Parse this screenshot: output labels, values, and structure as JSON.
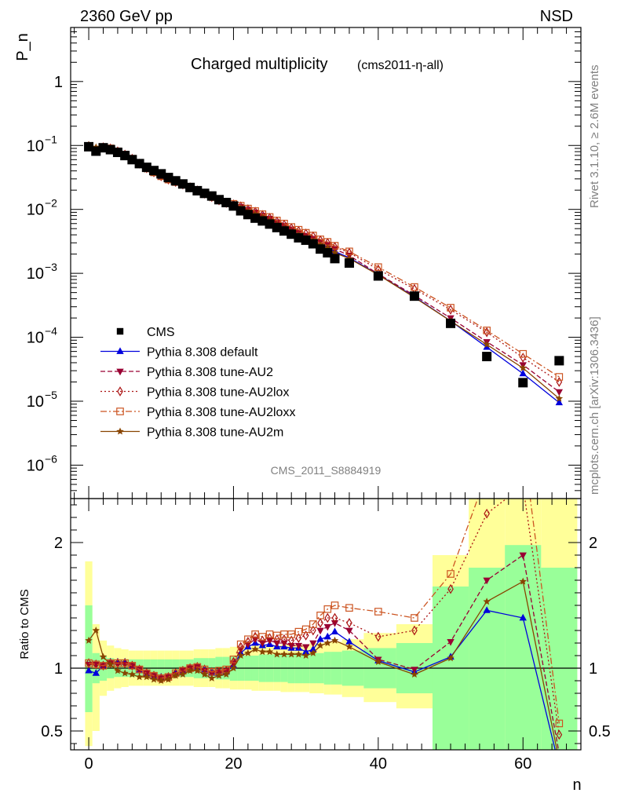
{
  "header": {
    "energy": "2360 GeV pp",
    "process": "NSD",
    "title_main": "Charged multiplicity",
    "title_sub": "(cms2011-η-all)",
    "watermark": "CMS_2011_S8884919",
    "side_rivet": "Rivet 3.1.10, ≥ 2.6M events",
    "side_site": "mcplots.cern.ch [arXiv:1306.3436]"
  },
  "colors": {
    "data": "#000000",
    "default": "#0000dd",
    "au2": "#990033",
    "au2lox": "#aa1111",
    "au2loxx": "#cc5522",
    "au2m": "#884400",
    "band_inner": "#99ff99",
    "band_outer": "#ffff99"
  },
  "chart_data": [
    {
      "type": "scatter",
      "title": "Charged multiplicity (cms2011-η-all)",
      "xlabel": "n",
      "ylabel": "P_n",
      "yscale": "log",
      "xlim": [
        -2.5,
        68
      ],
      "ylim": [
        3e-07,
        7
      ],
      "ytick_labels": [
        "10^-6",
        "10^-5",
        "10^-4",
        "10^-3",
        "10^-2",
        "10^-1",
        "1"
      ],
      "legend_position": "center-left",
      "legend": [
        "CMS",
        "Pythia 8.308 default",
        "Pythia 8.308 tune-AU2",
        "Pythia 8.308 tune-AU2lox",
        "Pythia 8.308 tune-AU2loxx",
        "Pythia 8.308 tune-AU2m"
      ],
      "x": [
        0,
        1,
        2,
        3,
        4,
        5,
        6,
        7,
        8,
        9,
        10,
        11,
        12,
        13,
        14,
        15,
        16,
        17,
        18,
        19,
        20,
        21,
        22,
        23,
        24,
        25,
        26,
        27,
        28,
        29,
        30,
        31,
        32,
        33,
        34,
        36,
        40,
        45,
        50,
        55,
        60,
        65
      ],
      "series": [
        {
          "name": "CMS",
          "style": "data",
          "values": [
            0.0955,
            0.0815,
            0.092,
            0.086,
            0.078,
            0.0695,
            0.06,
            0.052,
            0.0455,
            0.0405,
            0.036,
            0.0315,
            0.028,
            0.025,
            0.022,
            0.0196,
            0.0178,
            0.0162,
            0.0142,
            0.0128,
            0.0113,
            0.0095,
            0.0083,
            0.0073,
            0.0066,
            0.0059,
            0.0052,
            0.0046,
            0.0041,
            0.0036,
            0.0033,
            0.0029,
            0.0024,
            0.0021,
            0.0017,
            0.00145,
            0.00091,
            0.00044,
            0.000165,
            5e-05,
            1.95e-05,
            4.3e-05
          ]
        },
        {
          "name": "Pythia 8.308 default",
          "style": "default",
          "values": [
            0.092,
            0.076,
            0.089,
            0.089,
            0.081,
            0.072,
            0.061,
            0.051,
            0.043,
            0.037,
            0.0323,
            0.0285,
            0.0259,
            0.0236,
            0.0215,
            0.0195,
            0.0172,
            0.0152,
            0.0134,
            0.0122,
            0.0114,
            0.0107,
            0.0096,
            0.0087,
            0.0078,
            0.007,
            0.0061,
            0.0054,
            0.0047,
            0.0042,
            0.0037,
            0.0033,
            0.0029,
            0.0026,
            0.0022,
            0.00175,
            0.00096,
            0.00043,
            0.00018,
            7e-05,
            2.7e-05,
            9.5e-06
          ]
        },
        {
          "name": "Pythia 8.308 tune-AU2",
          "style": "au2",
          "values": [
            0.097,
            0.083,
            0.093,
            0.09,
            0.081,
            0.072,
            0.062,
            0.052,
            0.044,
            0.038,
            0.033,
            0.0292,
            0.0265,
            0.0245,
            0.0222,
            0.0198,
            0.0175,
            0.0155,
            0.0138,
            0.0126,
            0.0118,
            0.011,
            0.0099,
            0.009,
            0.008,
            0.0072,
            0.0063,
            0.0056,
            0.0049,
            0.0043,
            0.0039,
            0.0035,
            0.0031,
            0.0028,
            0.0024,
            0.0019,
            0.00098,
            0.00045,
            0.0002,
            8.5e-05,
            3.7e-05,
            1.4e-05
          ]
        },
        {
          "name": "Pythia 8.308 tune-AU2lox",
          "style": "au2lox",
          "values": [
            0.098,
            0.084,
            0.094,
            0.09,
            0.081,
            0.072,
            0.062,
            0.052,
            0.044,
            0.038,
            0.033,
            0.0292,
            0.0268,
            0.0245,
            0.0222,
            0.0198,
            0.0176,
            0.0156,
            0.0138,
            0.0126,
            0.012,
            0.0112,
            0.0101,
            0.0092,
            0.0082,
            0.0074,
            0.0065,
            0.0058,
            0.0051,
            0.0046,
            0.0042,
            0.0038,
            0.0033,
            0.003,
            0.0026,
            0.0021,
            0.00115,
            0.00057,
            0.00027,
            0.00012,
            4.8e-05,
            2e-05
          ]
        },
        {
          "name": "Pythia 8.308 tune-AU2loxx",
          "style": "au2loxx",
          "values": [
            0.098,
            0.084,
            0.094,
            0.09,
            0.081,
            0.072,
            0.062,
            0.052,
            0.044,
            0.038,
            0.033,
            0.0293,
            0.0268,
            0.0246,
            0.0223,
            0.0199,
            0.0178,
            0.0158,
            0.014,
            0.0128,
            0.0122,
            0.0114,
            0.0103,
            0.0094,
            0.0084,
            0.0076,
            0.0067,
            0.006,
            0.0053,
            0.0048,
            0.0043,
            0.0039,
            0.0034,
            0.0031,
            0.0027,
            0.0022,
            0.00125,
            0.00061,
            0.00029,
            0.000128,
            5.5e-05,
            2.4e-05
          ]
        },
        {
          "name": "Pythia 8.308 tune-AU2m",
          "style": "au2m",
          "values": [
            0.102,
            0.094,
            0.096,
            0.089,
            0.078,
            0.068,
            0.058,
            0.049,
            0.042,
            0.037,
            0.0325,
            0.0288,
            0.0262,
            0.0238,
            0.0215,
            0.0193,
            0.0168,
            0.0149,
            0.0134,
            0.0122,
            0.0113,
            0.0104,
            0.0093,
            0.0084,
            0.0075,
            0.0067,
            0.0058,
            0.0051,
            0.0045,
            0.004,
            0.0036,
            0.0032,
            0.0028,
            0.0025,
            0.0021,
            0.0017,
            0.00095,
            0.00042,
            0.00018,
            7.7e-05,
            3.3e-05,
            1.1e-05
          ]
        }
      ]
    },
    {
      "type": "line",
      "xlabel": "n",
      "ylabel": "Ratio to CMS",
      "ylim": [
        0.35,
        2.35
      ],
      "xlim": [
        -2.5,
        68
      ],
      "x_ticks": [
        0,
        20,
        40,
        60
      ],
      "y_ticks": [
        0.5,
        1,
        2
      ],
      "reference_line": 1,
      "x": [
        0,
        1,
        2,
        3,
        4,
        5,
        6,
        7,
        8,
        9,
        10,
        11,
        12,
        13,
        14,
        15,
        16,
        17,
        18,
        19,
        20,
        21,
        22,
        23,
        24,
        25,
        26,
        27,
        28,
        29,
        30,
        31,
        32,
        33,
        34,
        36,
        40,
        45,
        50,
        55,
        60,
        65
      ],
      "series": [
        {
          "name": "Pythia 8.308 default",
          "style": "default",
          "values": [
            0.98,
            0.96,
            1.02,
            1.05,
            1.05,
            1.05,
            1.02,
            0.98,
            0.95,
            0.93,
            0.93,
            0.93,
            0.96,
            0.98,
            1.0,
            1.0,
            0.98,
            0.96,
            0.96,
            0.97,
            1.02,
            1.12,
            1.17,
            1.2,
            1.18,
            1.19,
            1.17,
            1.17,
            1.16,
            1.16,
            1.13,
            1.15,
            1.23,
            1.25,
            1.29,
            1.21,
            1.06,
            0.97,
            1.09,
            1.46,
            1.4,
            0.22
          ]
        },
        {
          "name": "Pythia 8.308 tune-AU2",
          "style": "au2",
          "values": [
            1.03,
            1.03,
            1.02,
            1.04,
            1.03,
            1.03,
            1.02,
            0.99,
            0.96,
            0.94,
            0.92,
            0.93,
            0.95,
            0.98,
            1.0,
            1.01,
            0.98,
            0.96,
            0.97,
            0.98,
            1.04,
            1.15,
            1.19,
            1.23,
            1.2,
            1.22,
            1.2,
            1.2,
            1.18,
            1.18,
            1.17,
            1.2,
            1.3,
            1.33,
            1.36,
            1.3,
            1.07,
            0.99,
            1.21,
            1.7,
            1.9,
            0.32
          ]
        },
        {
          "name": "Pythia 8.308 tune-AU2lox",
          "style": "au2lox",
          "values": [
            1.04,
            1.03,
            1.02,
            1.04,
            1.04,
            1.04,
            1.02,
            0.99,
            0.96,
            0.94,
            0.92,
            0.93,
            0.96,
            0.98,
            1.0,
            1.01,
            0.99,
            0.97,
            0.97,
            0.98,
            1.05,
            1.17,
            1.21,
            1.25,
            1.22,
            1.24,
            1.23,
            1.23,
            1.22,
            1.24,
            1.26,
            1.3,
            1.36,
            1.4,
            1.4,
            1.36,
            1.25,
            1.3,
            1.63,
            2.23,
            2.45,
            0.47
          ]
        },
        {
          "name": "Pythia 8.308 tune-AU2loxx",
          "style": "au2loxx",
          "values": [
            1.04,
            1.03,
            1.02,
            1.04,
            1.04,
            1.04,
            1.02,
            0.99,
            0.96,
            0.94,
            0.92,
            0.93,
            0.96,
            0.98,
            1.0,
            1.01,
            0.99,
            0.97,
            0.98,
            0.99,
            1.07,
            1.19,
            1.23,
            1.27,
            1.25,
            1.27,
            1.26,
            1.27,
            1.27,
            1.29,
            1.31,
            1.35,
            1.42,
            1.47,
            1.5,
            1.48,
            1.45,
            1.4,
            1.75,
            2.55,
            2.8,
            0.56
          ]
        },
        {
          "name": "Pythia 8.308 tune-AU2m",
          "style": "au2m",
          "values": [
            1.22,
            1.3,
            1.09,
            1.03,
            0.98,
            0.96,
            0.95,
            0.93,
            0.93,
            0.91,
            0.9,
            0.91,
            0.94,
            0.95,
            0.98,
            0.98,
            0.95,
            0.92,
            0.94,
            0.95,
            1.0,
            1.1,
            1.12,
            1.15,
            1.13,
            1.13,
            1.11,
            1.11,
            1.11,
            1.11,
            1.1,
            1.12,
            1.18,
            1.2,
            1.22,
            1.17,
            1.05,
            0.95,
            1.08,
            1.53,
            1.69,
            0.26
          ]
        }
      ],
      "bands": {
        "x_edges": [
          -0.5,
          0.5,
          1.5,
          2.5,
          3.5,
          4.5,
          5.5,
          6.5,
          7.5,
          8.5,
          9.5,
          10.5,
          11.5,
          12.5,
          13.5,
          14.5,
          15.5,
          16.5,
          17.5,
          18.5,
          19.5,
          20.5,
          21.5,
          22.5,
          23.5,
          24.5,
          25.5,
          26.5,
          27.5,
          28.5,
          29.5,
          30.5,
          31.5,
          32.5,
          33.5,
          35,
          38,
          42.5,
          47.5,
          52.5,
          57.5,
          62.5,
          67.5
        ],
        "inner_lo": [
          0.65,
          0.88,
          0.9,
          0.92,
          0.93,
          0.93,
          0.93,
          0.93,
          0.93,
          0.93,
          0.93,
          0.93,
          0.93,
          0.93,
          0.93,
          0.92,
          0.92,
          0.92,
          0.91,
          0.91,
          0.9,
          0.9,
          0.9,
          0.9,
          0.89,
          0.89,
          0.89,
          0.89,
          0.88,
          0.88,
          0.88,
          0.88,
          0.88,
          0.87,
          0.87,
          0.86,
          0.84,
          0.8,
          0.35,
          0.35,
          0.35,
          0.35
        ],
        "inner_hi": [
          1.5,
          1.12,
          1.1,
          1.08,
          1.07,
          1.07,
          1.07,
          1.07,
          1.07,
          1.07,
          1.07,
          1.07,
          1.07,
          1.07,
          1.07,
          1.08,
          1.08,
          1.08,
          1.09,
          1.09,
          1.1,
          1.1,
          1.1,
          1.1,
          1.11,
          1.11,
          1.11,
          1.11,
          1.12,
          1.12,
          1.12,
          1.12,
          1.12,
          1.13,
          1.13,
          1.14,
          1.16,
          1.2,
          1.65,
          1.8,
          1.98,
          1.8
        ],
        "outer_lo": [
          0.38,
          0.5,
          0.78,
          0.82,
          0.84,
          0.85,
          0.86,
          0.86,
          0.86,
          0.86,
          0.86,
          0.86,
          0.86,
          0.86,
          0.86,
          0.85,
          0.85,
          0.85,
          0.84,
          0.84,
          0.83,
          0.83,
          0.83,
          0.82,
          0.82,
          0.82,
          0.82,
          0.81,
          0.81,
          0.81,
          0.81,
          0.8,
          0.8,
          0.79,
          0.79,
          0.77,
          0.73,
          0.68,
          0.35,
          0.35,
          0.35,
          0.35
        ],
        "outer_hi": [
          1.85,
          1.35,
          1.22,
          1.18,
          1.16,
          1.15,
          1.14,
          1.14,
          1.14,
          1.14,
          1.14,
          1.14,
          1.14,
          1.14,
          1.14,
          1.15,
          1.15,
          1.15,
          1.16,
          1.16,
          1.17,
          1.17,
          1.17,
          1.18,
          1.18,
          1.18,
          1.18,
          1.19,
          1.19,
          1.19,
          1.19,
          1.2,
          1.2,
          1.21,
          1.21,
          1.23,
          1.28,
          1.35,
          1.9,
          2.4,
          2.4,
          2.4
        ]
      }
    }
  ]
}
